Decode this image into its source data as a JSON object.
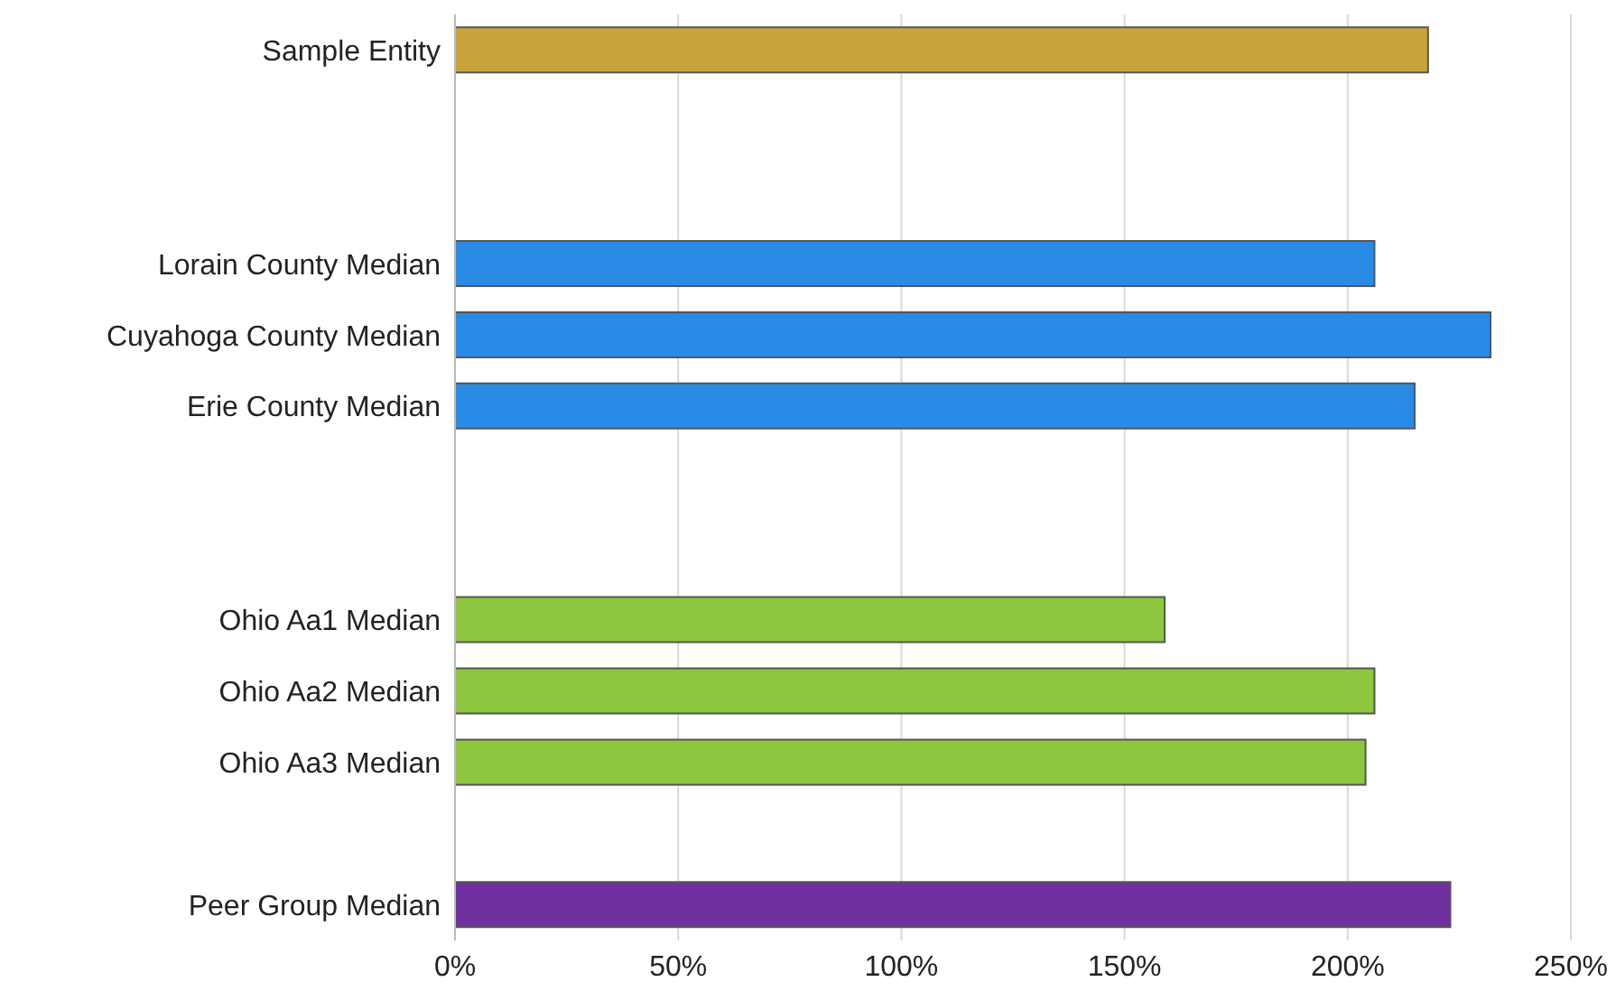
{
  "chart_data": {
    "type": "bar",
    "orientation": "horizontal",
    "categories": [
      "Sample Entity",
      null,
      null,
      "Lorain County Median",
      "Cuyahoga County Median",
      "Erie County Median",
      null,
      null,
      "Ohio Aa1 Median",
      "Ohio Aa2 Median",
      "Ohio Aa3 Median",
      null,
      "Peer Group Median"
    ],
    "values": [
      218,
      null,
      null,
      206,
      232,
      215,
      null,
      null,
      159,
      206,
      204,
      null,
      223
    ],
    "colors": [
      "#c9a43c",
      null,
      null,
      "#2a8be6",
      "#2a8be6",
      "#2a8be6",
      null,
      null,
      "#8dc63f",
      "#8dc63f",
      "#8dc63f",
      null,
      "#7030a0"
    ],
    "xlim": [
      0,
      250
    ],
    "xticks": [
      {
        "value": 0,
        "label": "0%"
      },
      {
        "value": 50,
        "label": "50%"
      },
      {
        "value": 100,
        "label": "100%"
      },
      {
        "value": 150,
        "label": "150%"
      },
      {
        "value": 200,
        "label": "200%"
      },
      {
        "value": 250,
        "label": "250%"
      }
    ],
    "grid": "x",
    "legend": false
  }
}
